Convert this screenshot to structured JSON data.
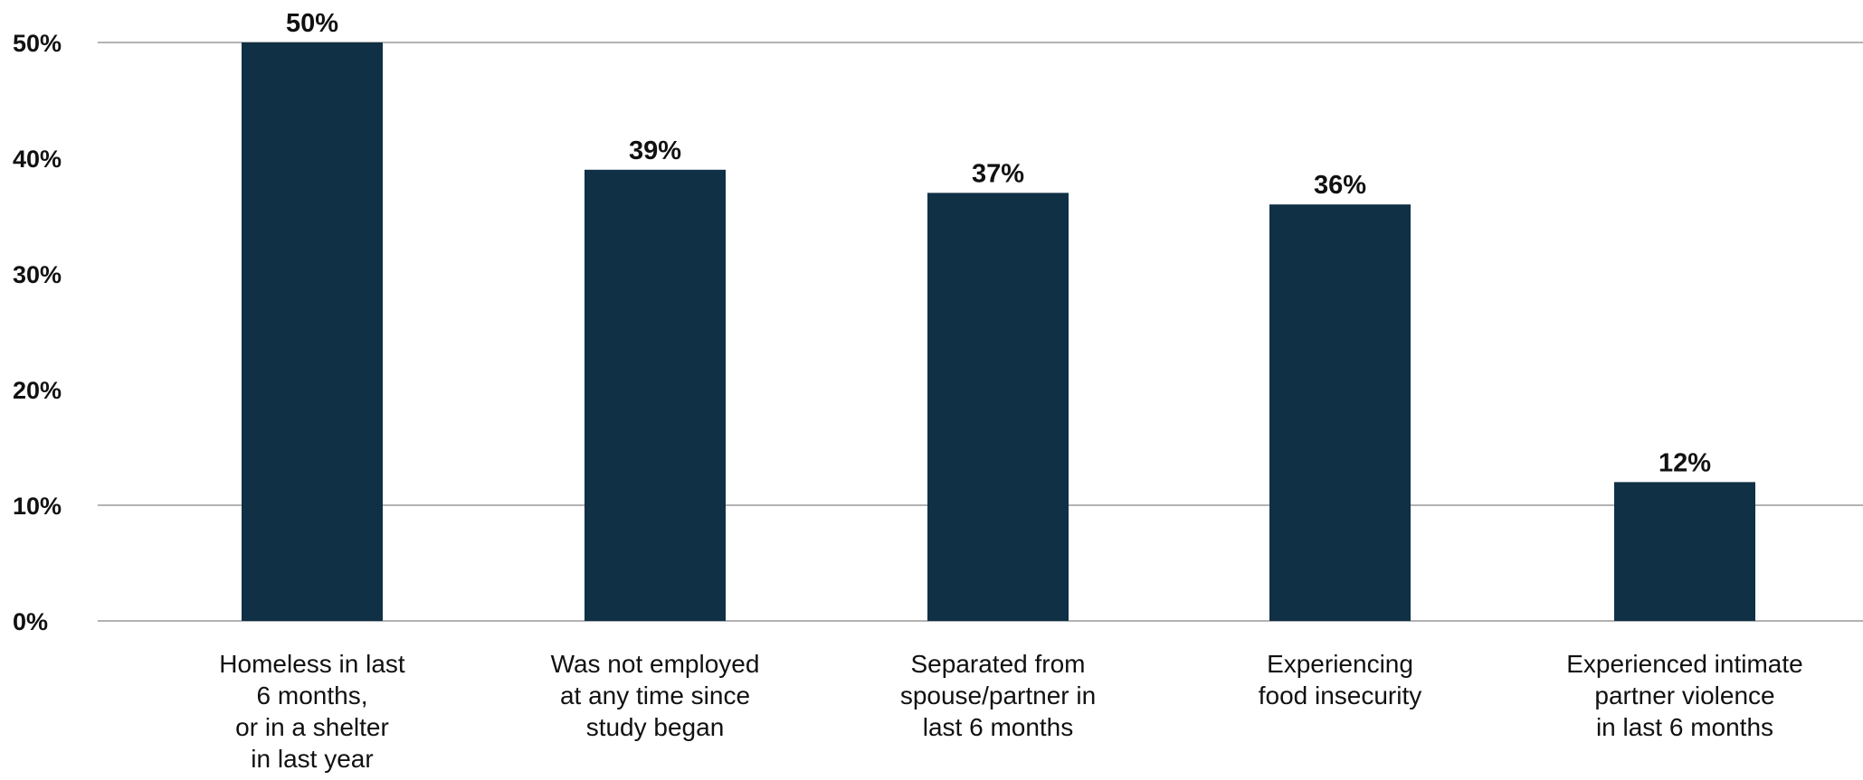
{
  "chart_data": {
    "type": "bar",
    "categories": [
      [
        "Homeless in last",
        "6 months,",
        "or in a shelter",
        "in last year"
      ],
      [
        "Was not employed",
        "at any time since",
        "study began"
      ],
      [
        "Separated from",
        "spouse/partner in",
        "last 6 months"
      ],
      [
        "Experiencing",
        "food insecurity"
      ],
      [
        "Experienced intimate",
        "partner violence",
        "in last 6 months"
      ]
    ],
    "values": [
      50,
      39,
      37,
      36,
      12
    ],
    "value_labels": [
      "50%",
      "39%",
      "37%",
      "36%",
      "12%"
    ],
    "yticks": [
      0,
      10,
      20,
      30,
      40,
      50
    ],
    "ytick_labels": [
      "0%",
      "10%",
      "20%",
      "30%",
      "40%",
      "50%"
    ],
    "ylim": [
      0,
      50
    ],
    "gridlines_at": [
      0,
      10,
      50
    ],
    "bar_color": "#0f3045",
    "grid_color": "#9a9a9a",
    "legend": "none"
  }
}
